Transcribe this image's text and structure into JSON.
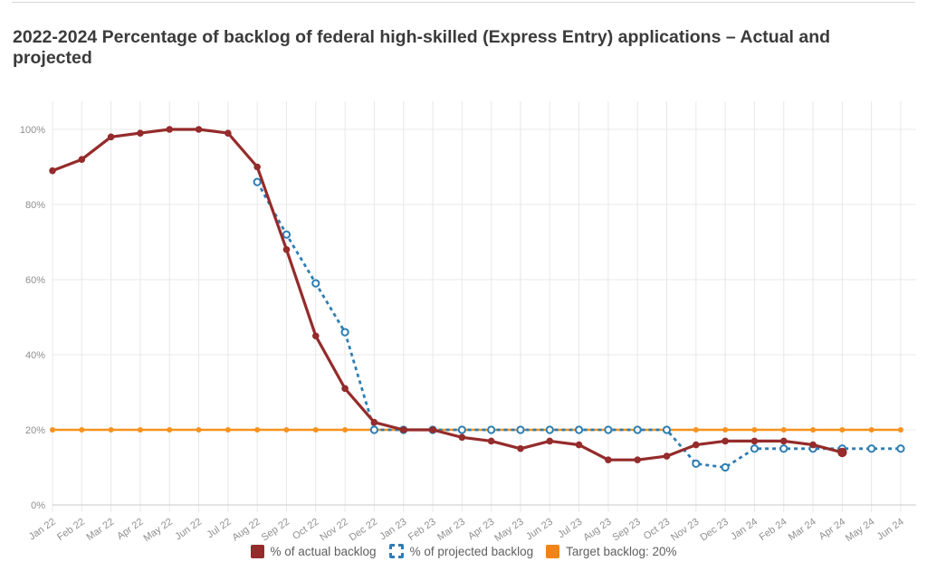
{
  "title_lines": [
    "2022-2024 Percentage of backlog of federal high-skilled (Express Entry) applications – Actual and",
    "projected"
  ],
  "legend": {
    "items": [
      {
        "label": "% of actual backlog",
        "color": "#952b2b",
        "swatch": "solid"
      },
      {
        "label": "% of projected backlog",
        "color": "#2d7eb3",
        "swatch": "dashed"
      },
      {
        "label": "Target backlog: 20%",
        "color": "#f08418",
        "swatch": "solid"
      }
    ]
  },
  "colors": {
    "actual": "#952b2b",
    "projected": "#2d7eb3",
    "target": "#f6921e",
    "gridline": "#e8e8e8",
    "axis_line": "#c9c9c9",
    "tick_label": "#8f8f8f",
    "title_text": "#3b3b3b"
  },
  "chart_data": {
    "type": "line",
    "title": "2022-2024 Percentage of backlog of federal high-skilled (Express Entry) applications – Actual and projected",
    "xlabel": "",
    "ylabel": "",
    "ylim": [
      0,
      100
    ],
    "grid": true,
    "legend_position": "bottom",
    "ytick_values": [
      0,
      20,
      40,
      60,
      80,
      100
    ],
    "ytick_labels": [
      "0%",
      "20%",
      "40%",
      "60%",
      "80%",
      "100%"
    ],
    "categories": [
      "Jan 22",
      "Feb 22",
      "Mar 22",
      "Apr 22",
      "May 22",
      "Jun 22",
      "Jul 22",
      "Aug 22",
      "Sep 22",
      "Oct 22",
      "Nov 22",
      "Dec 22",
      "Jan 23",
      "Feb 23",
      "Mar 23",
      "Apr 23",
      "May 23",
      "Jun 23",
      "Jul 23",
      "Aug 23",
      "Sep 23",
      "Oct 23",
      "Nov 23",
      "Dec 23",
      "Jan 24",
      "Feb 24",
      "Mar 24",
      "Apr 24",
      "May 24",
      "Jun 24"
    ],
    "series": [
      {
        "name": "% of actual backlog",
        "color": "#952b2b",
        "line_style": "solid",
        "marker": "filled-circle",
        "values": [
          89,
          92,
          98,
          99,
          100,
          100,
          99,
          90,
          68,
          45,
          31,
          22,
          20,
          20,
          18,
          17,
          15,
          17,
          16,
          12,
          12,
          13,
          16,
          17,
          17,
          17,
          16,
          14,
          null,
          null
        ]
      },
      {
        "name": "% of projected backlog",
        "color": "#2d7eb3",
        "line_style": "dashed",
        "marker": "open-circle",
        "values": [
          null,
          null,
          null,
          null,
          null,
          null,
          null,
          86,
          72,
          59,
          46,
          20,
          20,
          20,
          20,
          20,
          20,
          20,
          20,
          20,
          20,
          20,
          11,
          10,
          15,
          15,
          15,
          15,
          15,
          15
        ]
      },
      {
        "name": "Target backlog: 20%",
        "color": "#f6921e",
        "line_style": "solid",
        "marker": "filled-circle",
        "values": [
          20,
          20,
          20,
          20,
          20,
          20,
          20,
          20,
          20,
          20,
          20,
          20,
          20,
          20,
          20,
          20,
          20,
          20,
          20,
          20,
          20,
          20,
          20,
          20,
          20,
          20,
          20,
          20,
          20,
          20
        ]
      }
    ]
  }
}
